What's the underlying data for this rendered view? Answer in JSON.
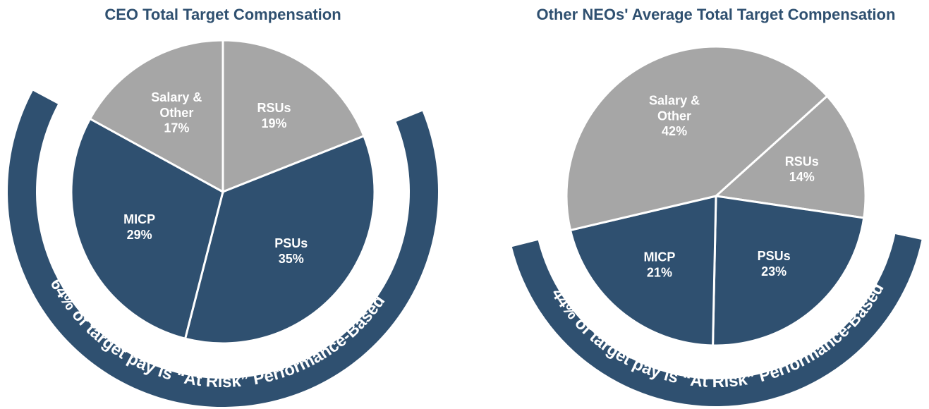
{
  "chart_data": [
    {
      "type": "pie",
      "title": "CEO Total Target Compensation",
      "categories": [
        "RSUs",
        "PSUs",
        "MICP",
        "Salary & Other"
      ],
      "values": [
        19,
        35,
        29,
        17
      ],
      "value_labels": [
        "19%",
        "35%",
        "29%",
        "17%"
      ],
      "colors": [
        "#a6a6a6",
        "#2f5070",
        "#2f5070",
        "#a6a6a6"
      ],
      "startangle": 0,
      "annotation": "64% of target pay is “At Risk” Performance-Based"
    },
    {
      "type": "pie",
      "title": "Other NEOs' Average Total Target Compensation",
      "categories": [
        "RSUs",
        "PSUs",
        "MICP",
        "Salary & Other"
      ],
      "values": [
        14,
        23,
        21,
        42
      ],
      "value_labels": [
        "14%",
        "23%",
        "21%",
        "42%"
      ],
      "colors": [
        "#a6a6a6",
        "#2f5070",
        "#2f5070",
        "#a6a6a6"
      ],
      "startangle": 48,
      "annotation": "44% of target pay is “At Risk” Performance-Based"
    }
  ]
}
